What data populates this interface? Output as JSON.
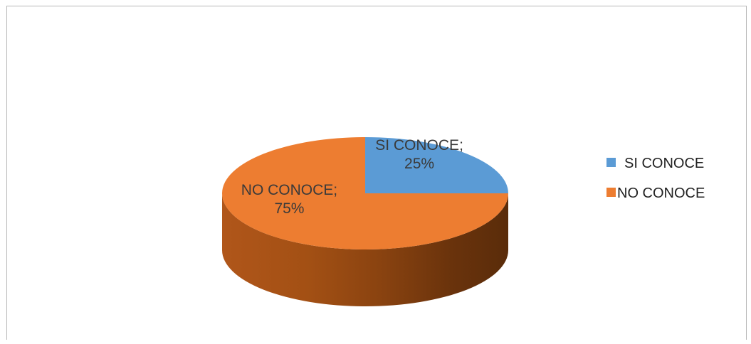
{
  "chart_data": {
    "type": "pie",
    "style": "3d",
    "slices": [
      {
        "label": "SI CONOCE",
        "value": 25,
        "color": "#5b9bd5",
        "data_label_line1": "SI CONOCE;",
        "data_label_line2": "25%"
      },
      {
        "label": "NO CONOCE",
        "value": 75,
        "color": "#ed7d31",
        "data_label_line1": "NO CONOCE;",
        "data_label_line2": "75%"
      }
    ],
    "legend": {
      "placement": "right",
      "entries": [
        "SI CONOCE",
        "NO CONOCE"
      ]
    }
  }
}
